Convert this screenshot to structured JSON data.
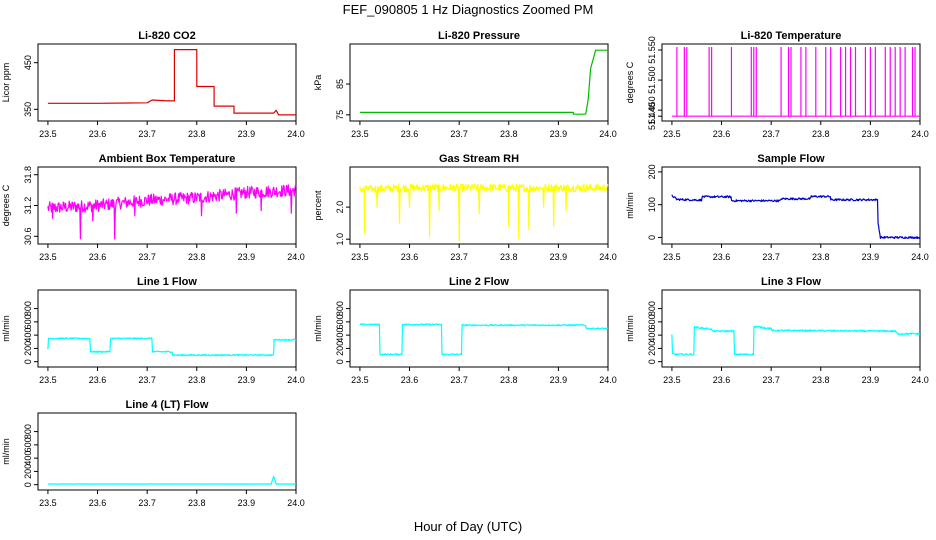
{
  "figure": {
    "title": "FEF_090805  1 Hz Diagnostics Zoomed PM",
    "xlabel": "Hour of Day (UTC)"
  },
  "chart_data": [
    {
      "type": "line",
      "title": "Li-820 CO2",
      "ylabel": "Licor ppm",
      "xlim": [
        23.48,
        24.0
      ],
      "ylim": [
        325,
        490
      ],
      "yticks": [
        350,
        450
      ],
      "xticks": [
        "23.5",
        "23.6",
        "23.7",
        "23.8",
        "23.9",
        "24.0"
      ],
      "color": "#dd0000",
      "series": [
        {
          "x": [
            23.5,
            23.6,
            23.7,
            23.71,
            23.71,
            23.74,
            23.755,
            23.755,
            23.8,
            23.8,
            23.835,
            23.835,
            23.875,
            23.875,
            23.9,
            23.955,
            23.96,
            23.965,
            24.0
          ],
          "values": [
            363,
            363,
            364,
            370,
            370,
            368,
            368,
            478,
            478,
            399,
            399,
            357,
            357,
            342,
            342,
            342,
            348,
            338,
            338
          ]
        }
      ]
    },
    {
      "type": "line",
      "title": "Li-820 Pressure",
      "ylabel": "kPa",
      "xlim": [
        23.48,
        24.0
      ],
      "ylim": [
        73,
        98
      ],
      "yticks": [
        75,
        85
      ],
      "xticks": [
        "23.5",
        "23.6",
        "23.7",
        "23.8",
        "23.9",
        "24.0"
      ],
      "color": "#00bb00",
      "series": [
        {
          "x": [
            23.5,
            23.6,
            23.7,
            23.8,
            23.9,
            23.93,
            23.93,
            23.955,
            23.96,
            23.965,
            23.975,
            24.0
          ],
          "values": [
            75.8,
            75.8,
            75.8,
            75.8,
            75.8,
            75.8,
            75.2,
            75.2,
            80,
            90,
            96,
            96
          ]
        }
      ]
    },
    {
      "type": "line",
      "title": "Li-820 Temperature",
      "ylabel": "degrees C",
      "xlim": [
        23.48,
        24.0
      ],
      "ylim": [
        51.432,
        51.56
      ],
      "yticks": [
        51.44,
        51.45,
        51.5,
        51.55
      ],
      "ytick_labels": [
        "51.440",
        "51.450",
        "51.500",
        "51.550"
      ],
      "xticks": [
        "23.5",
        "23.6",
        "23.7",
        "23.8",
        "23.9",
        "24.0"
      ],
      "color": "#ff00ff",
      "series": [
        {
          "x": [
            23.5,
            24.0
          ],
          "values": [
            51.44,
            51.44
          ]
        }
      ],
      "spikes": [
        23.51,
        23.525,
        23.53,
        23.575,
        23.58,
        23.62,
        23.66,
        23.665,
        23.67,
        23.72,
        23.735,
        23.74,
        23.76,
        23.77,
        23.79,
        23.81,
        23.82,
        23.84,
        23.85,
        23.86,
        23.87,
        23.89,
        23.9,
        23.91,
        23.93,
        23.94,
        23.95,
        23.96,
        23.97,
        23.985,
        23.99
      ],
      "spike_value": 51.555
    },
    {
      "type": "line",
      "title": "Ambient Box Temperature",
      "ylabel": "degrees C",
      "xlim": [
        23.48,
        24.0
      ],
      "ylim": [
        30.45,
        31.95
      ],
      "yticks": [
        30.6,
        31.2,
        31.8
      ],
      "ytick_labels": [
        "30.6",
        "31.2",
        "31.8"
      ],
      "xticks": [
        "23.5",
        "23.6",
        "23.7",
        "23.8",
        "23.9",
        "24.0"
      ],
      "color": "#ff00ff",
      "series": [
        {
          "x": [
            23.5,
            23.6,
            23.7,
            23.8,
            23.9,
            24.0
          ],
          "values": [
            31.15,
            31.2,
            31.3,
            31.35,
            31.45,
            31.5
          ]
        }
      ],
      "noise": 0.12,
      "dips": [
        [
          23.51,
          30.95
        ],
        [
          23.565,
          30.55
        ],
        [
          23.59,
          30.9
        ],
        [
          23.635,
          30.55
        ],
        [
          23.675,
          31.0
        ],
        [
          23.81,
          31.0
        ],
        [
          23.88,
          31.05
        ],
        [
          23.93,
          31.1
        ],
        [
          23.99,
          31.05
        ]
      ]
    },
    {
      "type": "line",
      "title": "Gas Stream RH",
      "ylabel": "percent",
      "xlim": [
        23.48,
        24.0
      ],
      "ylim": [
        0.85,
        3.25
      ],
      "yticks": [
        1.0,
        2.0
      ],
      "ytick_labels": [
        "1.0",
        "2.0"
      ],
      "xticks": [
        "23.5",
        "23.6",
        "23.7",
        "23.8",
        "23.9",
        "24.0"
      ],
      "color": "#ffff00",
      "series": [
        {
          "x": [
            23.5,
            23.6,
            23.7,
            23.8,
            23.9,
            24.0
          ],
          "values": [
            2.55,
            2.6,
            2.6,
            2.6,
            2.6,
            2.6
          ]
        }
      ],
      "noise": 0.12,
      "dips": [
        [
          23.51,
          1.2
        ],
        [
          23.535,
          2.0
        ],
        [
          23.58,
          1.5
        ],
        [
          23.6,
          2.0
        ],
        [
          23.64,
          1.1
        ],
        [
          23.66,
          1.9
        ],
        [
          23.7,
          0.95
        ],
        [
          23.74,
          1.8
        ],
        [
          23.8,
          1.4
        ],
        [
          23.82,
          1.0
        ],
        [
          23.84,
          1.3
        ],
        [
          23.87,
          2.0
        ],
        [
          23.89,
          1.4
        ],
        [
          23.915,
          1.9
        ]
      ]
    },
    {
      "type": "line",
      "title": "Sample Flow",
      "ylabel": "ml/min",
      "xlim": [
        23.48,
        24.0
      ],
      "ylim": [
        -20,
        215
      ],
      "yticks": [
        0,
        100,
        200
      ],
      "xticks": [
        "23.5",
        "23.6",
        "23.7",
        "23.8",
        "23.9",
        "24.0"
      ],
      "color": "#0000cc",
      "series": [
        {
          "x": [
            23.5,
            23.51,
            23.56,
            23.56,
            23.62,
            23.62,
            23.72,
            23.72,
            23.78,
            23.78,
            23.82,
            23.82,
            23.915,
            23.915,
            23.92,
            24.0
          ],
          "values": [
            128,
            116,
            114,
            124,
            124,
            112,
            112,
            118,
            118,
            125,
            125,
            115,
            115,
            50,
            0,
            0
          ]
        }
      ],
      "noise": 3
    },
    {
      "type": "line",
      "title": "Line 1 Flow",
      "ylabel": "ml/min",
      "xlim": [
        23.48,
        24.0
      ],
      "ylim": [
        -80,
        1080
      ],
      "yticks": [
        0,
        200,
        400,
        600,
        800
      ],
      "xticks": [
        "23.5",
        "23.6",
        "23.7",
        "23.8",
        "23.9",
        "24.0"
      ],
      "color": "#00ffff",
      "series": [
        {
          "x": [
            23.5,
            23.5,
            23.585,
            23.585,
            23.625,
            23.625,
            23.71,
            23.71,
            23.75,
            23.75,
            23.955,
            23.955,
            24.0
          ],
          "values": [
            180,
            350,
            350,
            150,
            150,
            350,
            350,
            150,
            150,
            100,
            100,
            330,
            330
          ]
        }
      ],
      "noise": 10
    },
    {
      "type": "line",
      "title": "Line 2 Flow",
      "ylabel": "ml/min",
      "xlim": [
        23.48,
        24.0
      ],
      "ylim": [
        -80,
        1080
      ],
      "yticks": [
        0,
        200,
        400,
        600,
        800
      ],
      "xticks": [
        "23.5",
        "23.6",
        "23.7",
        "23.8",
        "23.9",
        "24.0"
      ],
      "color": "#00ffff",
      "series": [
        {
          "x": [
            23.5,
            23.54,
            23.54,
            23.585,
            23.585,
            23.665,
            23.665,
            23.705,
            23.705,
            23.955,
            23.955,
            24.0
          ],
          "values": [
            560,
            560,
            110,
            110,
            560,
            560,
            110,
            110,
            550,
            550,
            500,
            500
          ]
        }
      ],
      "noise": 10
    },
    {
      "type": "line",
      "title": "Line 3 Flow",
      "ylabel": "ml/min",
      "xlim": [
        23.48,
        24.0
      ],
      "ylim": [
        -80,
        1080
      ],
      "yticks": [
        0,
        200,
        400,
        600,
        800
      ],
      "xticks": [
        "23.5",
        "23.6",
        "23.7",
        "23.8",
        "23.9",
        "24.0"
      ],
      "color": "#00ffff",
      "series": [
        {
          "x": [
            23.5,
            23.5,
            23.505,
            23.545,
            23.545,
            23.58,
            23.58,
            23.625,
            23.625,
            23.665,
            23.665,
            23.7,
            23.7,
            23.95,
            23.955,
            24.0
          ],
          "values": [
            400,
            120,
            110,
            110,
            520,
            490,
            460,
            460,
            110,
            110,
            530,
            500,
            470,
            460,
            420,
            420
          ]
        }
      ],
      "noise": 12
    },
    {
      "type": "line",
      "title": "Line 4 (LT) Flow",
      "ylabel": "ml/min",
      "xlim": [
        23.48,
        24.0
      ],
      "ylim": [
        -80,
        1080
      ],
      "yticks": [
        0,
        200,
        400,
        600,
        800
      ],
      "xticks": [
        "23.5",
        "23.6",
        "23.7",
        "23.8",
        "23.9",
        "24.0"
      ],
      "color": "#00ffff",
      "series": [
        {
          "x": [
            23.5,
            23.95,
            23.955,
            23.96,
            23.965,
            24.0
          ],
          "values": [
            10,
            10,
            130,
            10,
            10,
            10
          ]
        }
      ],
      "noise": 2
    }
  ]
}
